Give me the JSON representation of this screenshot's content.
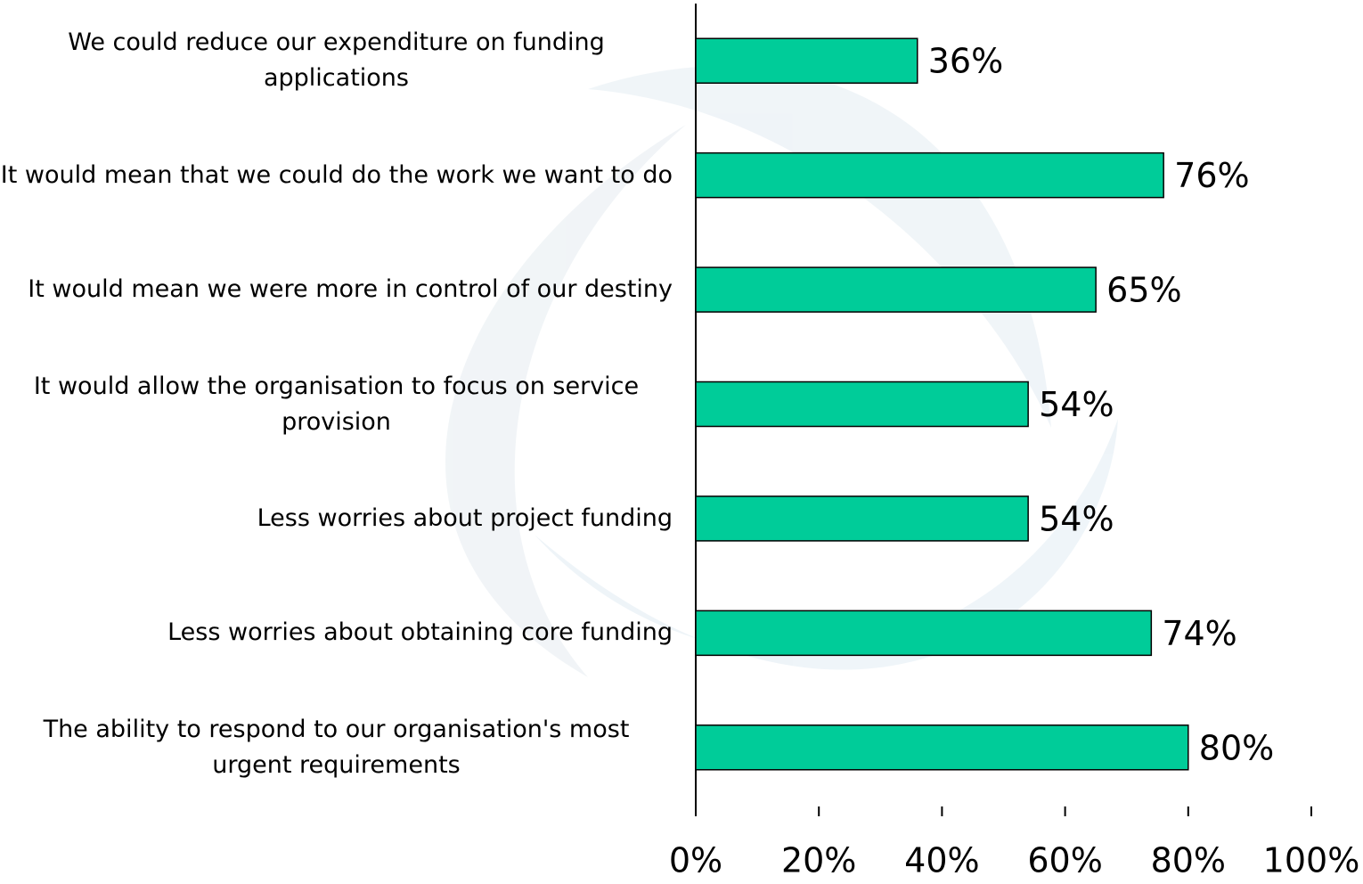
{
  "chart_data": {
    "type": "barh",
    "categories": [
      "We could reduce our expenditure on funding applications",
      "It would mean that we could do the work we want to do",
      "It would mean we were more in control of our destiny",
      "It would allow the organisation to focus on service provision",
      "Less worries about project funding",
      "Less worries about obtaining core funding",
      "The ability to respond to our organisation's most urgent requirements"
    ],
    "values": [
      36,
      76,
      65,
      54,
      54,
      74,
      80
    ],
    "value_labels": [
      "36%",
      "76%",
      "65%",
      "54%",
      "54%",
      "74%",
      "80%"
    ],
    "color": "#00cc99",
    "xlim": [
      0,
      100
    ],
    "xticks": [
      {
        "value": 0,
        "label": "0%"
      },
      {
        "value": 20,
        "label": "20%"
      },
      {
        "value": 40,
        "label": "40%"
      },
      {
        "value": 60,
        "label": "60%"
      },
      {
        "value": 80,
        "label": "80%"
      },
      {
        "value": 100,
        "label": "100%"
      }
    ],
    "grid": false
  }
}
